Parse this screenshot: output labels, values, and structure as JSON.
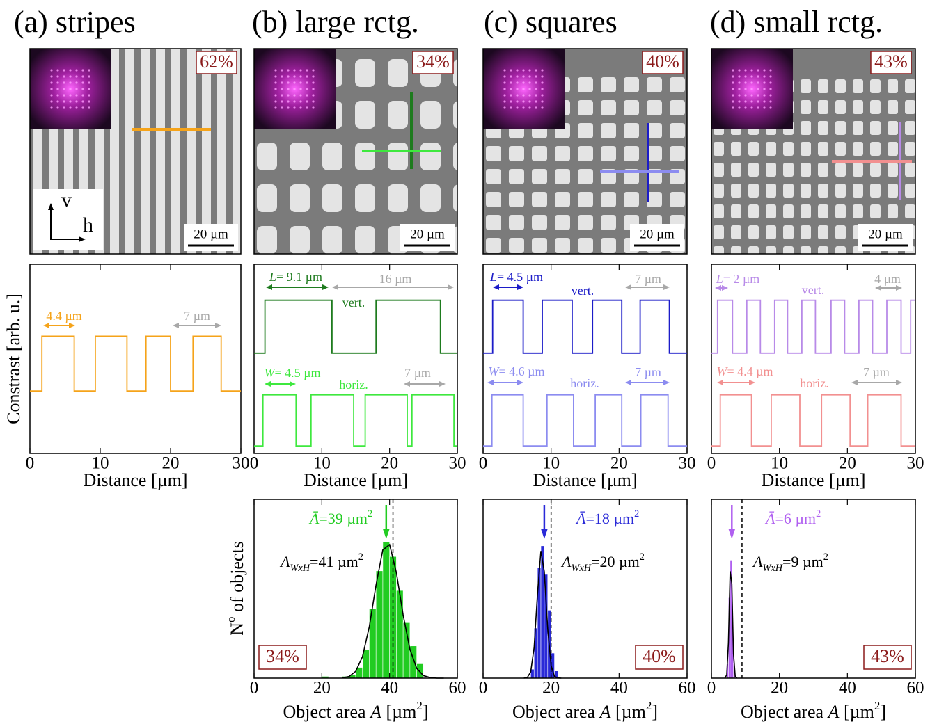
{
  "panels": [
    {
      "title": "(a) stripes",
      "percent": "62%",
      "scale_bar": "20 µm",
      "axes": [
        "v",
        "h"
      ]
    },
    {
      "title": "(b) large rctg.",
      "percent": "34%",
      "scale_bar": "20 µm"
    },
    {
      "title": "(c) squares",
      "percent": "40%",
      "scale_bar": "20 µm"
    },
    {
      "title": "(d) small rctg.",
      "percent": "43%",
      "scale_bar": "20 µm"
    }
  ],
  "chart_data": [
    {
      "type": "line",
      "xlim": [
        0,
        30
      ],
      "xticks": [
        0,
        10,
        20,
        30
      ],
      "ylim": [
        0,
        10
      ],
      "xlabel": "Distance [µm]",
      "ylabel": "Constrast [arb. u.]",
      "series": [
        {
          "color": "#f5a31a",
          "x": [
            0,
            1.7,
            1.7,
            6.3,
            6.3,
            9.3,
            9.3,
            13.8,
            13.8,
            16.5,
            16.5,
            20,
            20,
            23.2,
            23.2,
            27.2,
            27.2,
            30
          ],
          "values": [
            3.3,
            3.3,
            6.2,
            6.2,
            3.3,
            3.3,
            6.2,
            6.2,
            3.3,
            3.3,
            6.2,
            6.2,
            3.3,
            3.3,
            6.2,
            6.2,
            3.3,
            3.3
          ]
        }
      ],
      "annotations": [
        {
          "parts": [
            {
              "text": "4.4 µm"
            }
          ],
          "color": "#f5a31a"
        },
        {
          "parts": [
            {
              "text": "7 µm"
            }
          ],
          "color": "#a8a8a8"
        }
      ]
    },
    {
      "type": "line",
      "xlim": [
        0,
        30
      ],
      "xticks": [
        0,
        10,
        20,
        30
      ],
      "ylim": [
        0,
        10
      ],
      "xlabel": "Distance [µm]",
      "series": [
        {
          "name": "vert.",
          "color": "#1e7b1e",
          "x": [
            0,
            1.6,
            1.6,
            11.5,
            11.5,
            18,
            18,
            27.5,
            27.5,
            30
          ],
          "values": [
            5.3,
            5.3,
            8.1,
            8.1,
            5.3,
            5.3,
            8.1,
            8.1,
            5.3,
            5.3
          ]
        },
        {
          "name": "horiz.",
          "color": "#3ee83e",
          "x": [
            0,
            1.3,
            1.3,
            6.2,
            6.2,
            8.4,
            8.4,
            14.7,
            14.7,
            16.4,
            16.4,
            22.6,
            22.6,
            23.3,
            23.3,
            29.5,
            29.5,
            30
          ],
          "values": [
            0.4,
            0.4,
            3.1,
            3.1,
            0.4,
            0.4,
            3.1,
            3.1,
            0.4,
            0.4,
            3.1,
            3.1,
            0.4,
            0.4,
            3.1,
            3.1,
            0.4,
            0.4
          ]
        }
      ],
      "annotations": [
        {
          "parts": [
            {
              "text": "L",
              "style": "italic"
            },
            {
              "text": "= 9.1 µm"
            }
          ],
          "color": "#1e7b1e"
        },
        {
          "parts": [
            {
              "text": "16 µm"
            }
          ],
          "color": "#a8a8a8"
        },
        {
          "parts": [
            {
              "text": "W",
              "style": "italic"
            },
            {
              "text": "= 4.5 µm"
            }
          ],
          "color": "#3ee83e"
        },
        {
          "parts": [
            {
              "text": "7 µm"
            }
          ],
          "color": "#a8a8a8"
        }
      ]
    },
    {
      "type": "line",
      "xlim": [
        0,
        30
      ],
      "xticks": [
        0,
        10,
        20,
        30
      ],
      "ylim": [
        0,
        10
      ],
      "xlabel": "Distance [µm]",
      "series": [
        {
          "name": "vert.",
          "color": "#1c1cc8",
          "x": [
            0,
            1.4,
            1.4,
            5.9,
            5.9,
            8.7,
            8.7,
            13.1,
            13.1,
            16.1,
            16.1,
            20.4,
            20.4,
            23.1,
            23.1,
            27.4,
            27.4,
            30
          ],
          "values": [
            5.3,
            5.3,
            8.1,
            8.1,
            5.3,
            5.3,
            8.1,
            8.1,
            5.3,
            5.3,
            8.1,
            8.1,
            5.3,
            5.3,
            8.1,
            8.1,
            5.3,
            5.3
          ]
        },
        {
          "name": "horiz.",
          "color": "#8c8cf0",
          "x": [
            0,
            1.3,
            1.3,
            5.9,
            5.9,
            9.4,
            9.4,
            13.3,
            13.3,
            16.5,
            16.5,
            20.4,
            20.4,
            23.2,
            23.2,
            27.2,
            27.2,
            30
          ],
          "values": [
            0.4,
            0.4,
            3.1,
            3.1,
            0.4,
            0.4,
            3.1,
            3.1,
            0.4,
            0.4,
            3.1,
            3.1,
            0.4,
            0.4,
            3.1,
            3.1,
            0.4,
            0.4
          ]
        }
      ],
      "annotations": [
        {
          "parts": [
            {
              "text": "L",
              "style": "italic"
            },
            {
              "text": "= 4.5 µm"
            }
          ],
          "color": "#1c1cc8"
        },
        {
          "parts": [
            {
              "text": "7 µm"
            }
          ],
          "color": "#a8a8a8"
        },
        {
          "parts": [
            {
              "text": "W",
              "style": "italic"
            },
            {
              "text": "= 4.6 µm"
            }
          ],
          "color": "#8c8cf0"
        },
        {
          "parts": [
            {
              "text": "7 µm"
            }
          ],
          "color": "#8c8cf0"
        }
      ]
    },
    {
      "type": "line",
      "xlim": [
        0,
        30
      ],
      "xticks": [
        0,
        10,
        20,
        30
      ],
      "ylim": [
        0,
        10
      ],
      "xlabel": "Distance [µm]",
      "series": [
        {
          "name": "vert.",
          "color": "#b88ae8",
          "x": [
            0,
            0.9,
            0.9,
            3.1,
            3.1,
            5.2,
            5.2,
            7.2,
            7.2,
            9.3,
            9.3,
            11.2,
            11.2,
            13.3,
            13.3,
            15.3,
            15.3,
            17.6,
            17.6,
            19.6,
            19.6,
            21.7,
            21.7,
            23.7,
            23.7,
            25.8,
            25.8,
            27.9,
            27.9,
            29.3,
            29.3,
            30
          ],
          "values": [
            5.3,
            5.3,
            8.1,
            8.1,
            5.3,
            5.3,
            8.1,
            8.1,
            5.3,
            5.3,
            8.1,
            8.1,
            5.3,
            5.3,
            8.1,
            8.1,
            5.3,
            5.3,
            8.1,
            8.1,
            5.3,
            5.3,
            8.1,
            8.1,
            5.3,
            5.3,
            8.1,
            8.1,
            5.3,
            5.3,
            8.1,
            8.1
          ]
        },
        {
          "name": "horiz.",
          "color": "#f29090",
          "x": [
            0,
            1.3,
            1.3,
            5.9,
            5.9,
            8.8,
            8.8,
            13,
            13,
            16.2,
            16.2,
            20.4,
            20.4,
            23,
            23,
            27.9,
            27.9,
            30
          ],
          "values": [
            0.4,
            0.4,
            3.1,
            3.1,
            0.4,
            0.4,
            3.1,
            3.1,
            0.4,
            0.4,
            3.1,
            3.1,
            0.4,
            0.4,
            3.1,
            3.1,
            0.4,
            0.4
          ]
        }
      ],
      "annotations": [
        {
          "parts": [
            {
              "text": "L",
              "style": "italic"
            },
            {
              "text": "= 2 µm"
            }
          ],
          "color": "#b88ae8"
        },
        {
          "parts": [
            {
              "text": "4 µm"
            }
          ],
          "color": "#a8a8a8"
        },
        {
          "parts": [
            {
              "text": "W",
              "style": "italic"
            },
            {
              "text": "= 4.4 µm"
            }
          ],
          "color": "#f29090"
        },
        {
          "parts": [
            {
              "text": "7 µm"
            }
          ],
          "color": "#a8a8a8"
        }
      ]
    },
    {
      "type": "histogram",
      "color": "#22cc22",
      "xlim": [
        0,
        60
      ],
      "xticks": [
        0,
        20,
        40,
        60
      ],
      "ylim": [
        0,
        100
      ],
      "xlabel": [
        {
          "text": "Object area "
        },
        {
          "text": "A",
          "style": "italic"
        },
        {
          "text": " [µm"
        },
        {
          "text": "2",
          "style": "sup"
        },
        {
          "text": "]"
        }
      ],
      "ylabel": [
        {
          "text": "N"
        },
        {
          "text": "o",
          "style": "sup"
        },
        {
          "text": " of objects"
        }
      ],
      "bins": [
        18,
        20,
        22,
        24,
        26,
        28,
        30,
        32,
        34,
        36,
        38,
        40,
        42,
        44,
        46,
        48,
        50
      ],
      "values": [
        0,
        1,
        0,
        0,
        1,
        2,
        6,
        16,
        39,
        60,
        76,
        68,
        49,
        31,
        18,
        8
      ],
      "fit": {
        "x": [
          26,
          28,
          30,
          32,
          34,
          36,
          38,
          40,
          42,
          44,
          46,
          48,
          50,
          52,
          54,
          56
        ],
        "values": [
          0.2,
          0.9,
          3.8,
          12,
          28.7,
          52.1,
          71.7,
          74.7,
          59.1,
          35.4,
          16.1,
          5.5,
          1.4,
          0.3,
          0,
          0
        ]
      },
      "mean": 39,
      "mean_label": [
        {
          "text": "Ā",
          "style": "italic"
        },
        {
          "text": "=39 µm"
        },
        {
          "text": "2",
          "style": "sup"
        }
      ],
      "reference": 41,
      "reference_label": [
        {
          "text": "A",
          "style": "italic"
        },
        {
          "text": "WxH",
          "style": "sub"
        },
        {
          "text": "=41 µm"
        },
        {
          "text": "2",
          "style": "sup"
        }
      ],
      "percent": "34%"
    },
    {
      "type": "histogram",
      "color": "#2a2ad8",
      "xlim": [
        0,
        60
      ],
      "xticks": [
        0,
        20,
        40,
        60
      ],
      "ylim": [
        0,
        100
      ],
      "xlabel": [
        {
          "text": "Object area "
        },
        {
          "text": "A",
          "style": "italic"
        },
        {
          "text": " [µm"
        },
        {
          "text": "2",
          "style": "sup"
        },
        {
          "text": "]"
        }
      ],
      "bins": [
        14,
        15,
        16,
        17,
        18,
        19,
        20,
        21,
        22
      ],
      "values": [
        5,
        28,
        62,
        74,
        58,
        38,
        14,
        4
      ],
      "fit": {
        "x": [
          12,
          13,
          14,
          15,
          16,
          17,
          18,
          19,
          20,
          21,
          22,
          23
        ],
        "values": [
          0,
          0.4,
          3.5,
          17.2,
          47,
          71.1,
          59.6,
          27.6,
          7.1,
          1,
          0.1,
          0
        ]
      },
      "mean": 18,
      "mean_label": [
        {
          "text": "Ā",
          "style": "italic"
        },
        {
          "text": "=18 µm"
        },
        {
          "text": "2",
          "style": "sup"
        }
      ],
      "reference": 20,
      "reference_label": [
        {
          "text": "A",
          "style": "italic"
        },
        {
          "text": "WxH",
          "style": "sub"
        },
        {
          "text": "=20 µm"
        },
        {
          "text": "2",
          "style": "sup"
        }
      ],
      "percent": "40%"
    },
    {
      "type": "histogram",
      "color": "#b060f0",
      "xlim": [
        0,
        60
      ],
      "xticks": [
        0,
        20,
        40,
        60
      ],
      "ylim": [
        0,
        100
      ],
      "xlabel": [
        {
          "text": "Object area "
        },
        {
          "text": "A",
          "style": "italic"
        },
        {
          "text": " [µm"
        },
        {
          "text": "2",
          "style": "sup"
        },
        {
          "text": "]"
        }
      ],
      "bins": [
        4.5,
        5,
        5.5,
        6,
        6.5,
        7
      ],
      "values": [
        8,
        45,
        66,
        30,
        6
      ],
      "fit": {
        "x": [
          4,
          4.5,
          5,
          5.5,
          6,
          6.5,
          7,
          7.5
        ],
        "values": [
          0.1,
          1.9,
          19.7,
          59.8,
          52.8,
          13.6,
          1,
          0
        ]
      },
      "mean": 6,
      "mean_label": [
        {
          "text": "Ā",
          "style": "italic"
        },
        {
          "text": "=6 µm"
        },
        {
          "text": "2",
          "style": "sup"
        }
      ],
      "reference": 9,
      "reference_label": [
        {
          "text": "A",
          "style": "italic"
        },
        {
          "text": "WxH",
          "style": "sub"
        },
        {
          "text": "=9 µm"
        },
        {
          "text": "2",
          "style": "sup"
        }
      ],
      "percent": "43%"
    }
  ]
}
